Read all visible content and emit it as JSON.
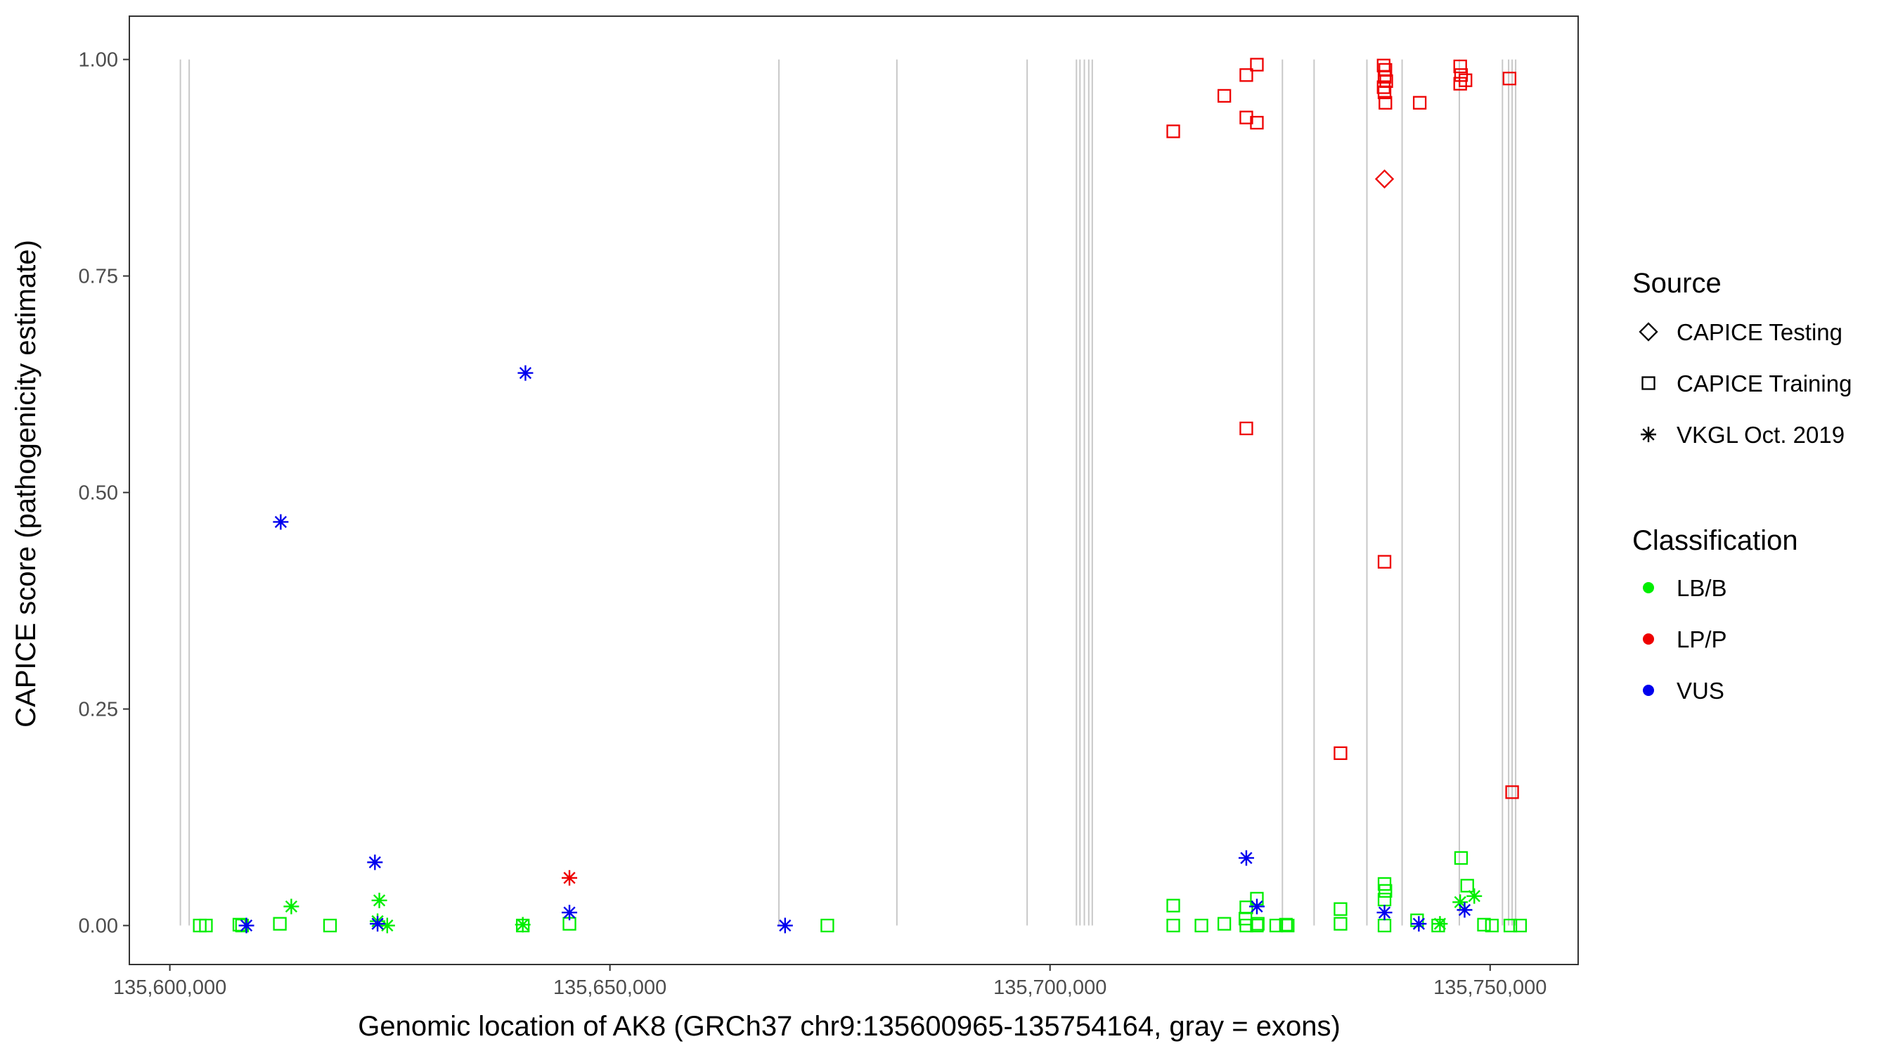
{
  "chart_data": {
    "type": "scatter",
    "title": "",
    "xlabel": "Genomic location of AK8 (GRCh37 chr9:135600965-135754164, gray = exons)",
    "ylabel": "CAPICE score (pathogenicity estimate)",
    "xlim": [
      135595400,
      135760000
    ],
    "ylim": [
      -0.045,
      1.05
    ],
    "x_ticks": [
      135600000,
      135650000,
      135700000,
      135750000
    ],
    "x_tick_labels": [
      "135,600,000",
      "135,650,000",
      "135,700,000",
      "135,750,000"
    ],
    "y_ticks": [
      0,
      0.25,
      0.5,
      0.75,
      1.0
    ],
    "y_tick_labels": [
      "0.00",
      "0.25",
      "0.50",
      "0.75",
      "1.00"
    ],
    "grid": false,
    "exon_color": "#c8c8c8",
    "exons": [
      135601200,
      135602200,
      135669200,
      135682600,
      135697400,
      135703000,
      135703400,
      135703900,
      135704400,
      135704800,
      135726400,
      135730000,
      135736000,
      135740000,
      135746500,
      135751400,
      135752100,
      135752500,
      135752900
    ],
    "legend": {
      "position": "right",
      "source_title": "Source",
      "sources": [
        {
          "key": "testing",
          "label": "CAPICE Testing",
          "shape": "diamond"
        },
        {
          "key": "training",
          "label": "CAPICE Training",
          "shape": "square"
        },
        {
          "key": "vkgl",
          "label": "VKGL Oct. 2019",
          "shape": "asterisk"
        }
      ],
      "class_title": "Classification",
      "classes": [
        {
          "key": "lbb",
          "label": "LB/B",
          "color": "#00ee00"
        },
        {
          "key": "lpp",
          "label": "LP/P",
          "color": "#ee0000"
        },
        {
          "key": "vus",
          "label": "VUS",
          "color": "#0000ee"
        }
      ]
    },
    "series": [
      {
        "name": "CAPICE Testing — LP/P",
        "source": "testing",
        "class": "lpp",
        "points": [
          [
            135738000,
            0.862
          ]
        ]
      },
      {
        "name": "CAPICE Training — LP/P",
        "source": "training",
        "class": "lpp",
        "points": [
          [
            135714000,
            0.917
          ],
          [
            135719800,
            0.958
          ],
          [
            135722300,
            0.982
          ],
          [
            135723500,
            0.994
          ],
          [
            135722300,
            0.933
          ],
          [
            135723500,
            0.927
          ],
          [
            135722300,
            0.574
          ],
          [
            135737900,
            0.993
          ],
          [
            135738100,
            0.988
          ],
          [
            135738000,
            0.98
          ],
          [
            135738200,
            0.975
          ],
          [
            135737900,
            0.968
          ],
          [
            135738000,
            0.962
          ],
          [
            135738100,
            0.95
          ],
          [
            135738000,
            0.42
          ],
          [
            135733000,
            0.199
          ],
          [
            135742000,
            0.95
          ],
          [
            135746600,
            0.992
          ],
          [
            135746700,
            0.982
          ],
          [
            135746600,
            0.972
          ],
          [
            135747200,
            0.976
          ],
          [
            135752200,
            0.978
          ],
          [
            135752500,
            0.154
          ]
        ]
      },
      {
        "name": "CAPICE Training — LB/B",
        "source": "training",
        "class": "lbb",
        "points": [
          [
            135603400,
            0.0
          ],
          [
            135604100,
            0.0
          ],
          [
            135608200,
            0.0
          ],
          [
            135607900,
            0.001
          ],
          [
            135612500,
            0.002
          ],
          [
            135618200,
            0.0
          ],
          [
            135640100,
            0.0
          ],
          [
            135645400,
            0.002
          ],
          [
            135674700,
            0.0
          ],
          [
            135714000,
            0.023
          ],
          [
            135714000,
            0.0
          ],
          [
            135717200,
            0.0
          ],
          [
            135719800,
            0.002
          ],
          [
            135722300,
            0.0
          ],
          [
            135722200,
            0.008
          ],
          [
            135722300,
            0.021
          ],
          [
            135723500,
            0.031
          ],
          [
            135723500,
            0.0
          ],
          [
            135723600,
            0.002
          ],
          [
            135725700,
            0.0
          ],
          [
            135726800,
            0.001
          ],
          [
            135727000,
            0.0
          ],
          [
            135733000,
            0.002
          ],
          [
            135733000,
            0.019
          ],
          [
            135738000,
            0.048
          ],
          [
            135738100,
            0.04
          ],
          [
            135738000,
            0.03
          ],
          [
            135738000,
            0.0
          ],
          [
            135741700,
            0.006
          ],
          [
            135744100,
            0.0
          ],
          [
            135746700,
            0.078
          ],
          [
            135747400,
            0.046
          ],
          [
            135749300,
            0.001
          ],
          [
            135750200,
            0.0
          ],
          [
            135752300,
            0.0
          ],
          [
            135753400,
            0.0
          ]
        ]
      },
      {
        "name": "VKGL Oct. 2019 — LB/B",
        "source": "vkgl",
        "class": "lbb",
        "points": [
          [
            135613800,
            0.022
          ],
          [
            135623800,
            0.029
          ],
          [
            135623600,
            0.005
          ],
          [
            135624700,
            0.0
          ],
          [
            135640100,
            0.001
          ],
          [
            135746600,
            0.027
          ],
          [
            135748200,
            0.034
          ],
          [
            135744300,
            0.002
          ]
        ]
      },
      {
        "name": "VKGL Oct. 2019 — LP/P",
        "source": "vkgl",
        "class": "lpp",
        "points": [
          [
            135645400,
            0.055
          ]
        ]
      },
      {
        "name": "VKGL Oct. 2019 — VUS",
        "source": "vkgl",
        "class": "vus",
        "points": [
          [
            135608700,
            0.0
          ],
          [
            135612600,
            0.466
          ],
          [
            135623300,
            0.073
          ],
          [
            135623600,
            0.002
          ],
          [
            135640400,
            0.638
          ],
          [
            135645400,
            0.015
          ],
          [
            135669900,
            0.0
          ],
          [
            135722300,
            0.078
          ],
          [
            135723500,
            0.022
          ],
          [
            135738000,
            0.015
          ],
          [
            135741900,
            0.002
          ],
          [
            135747100,
            0.018
          ]
        ]
      }
    ]
  }
}
